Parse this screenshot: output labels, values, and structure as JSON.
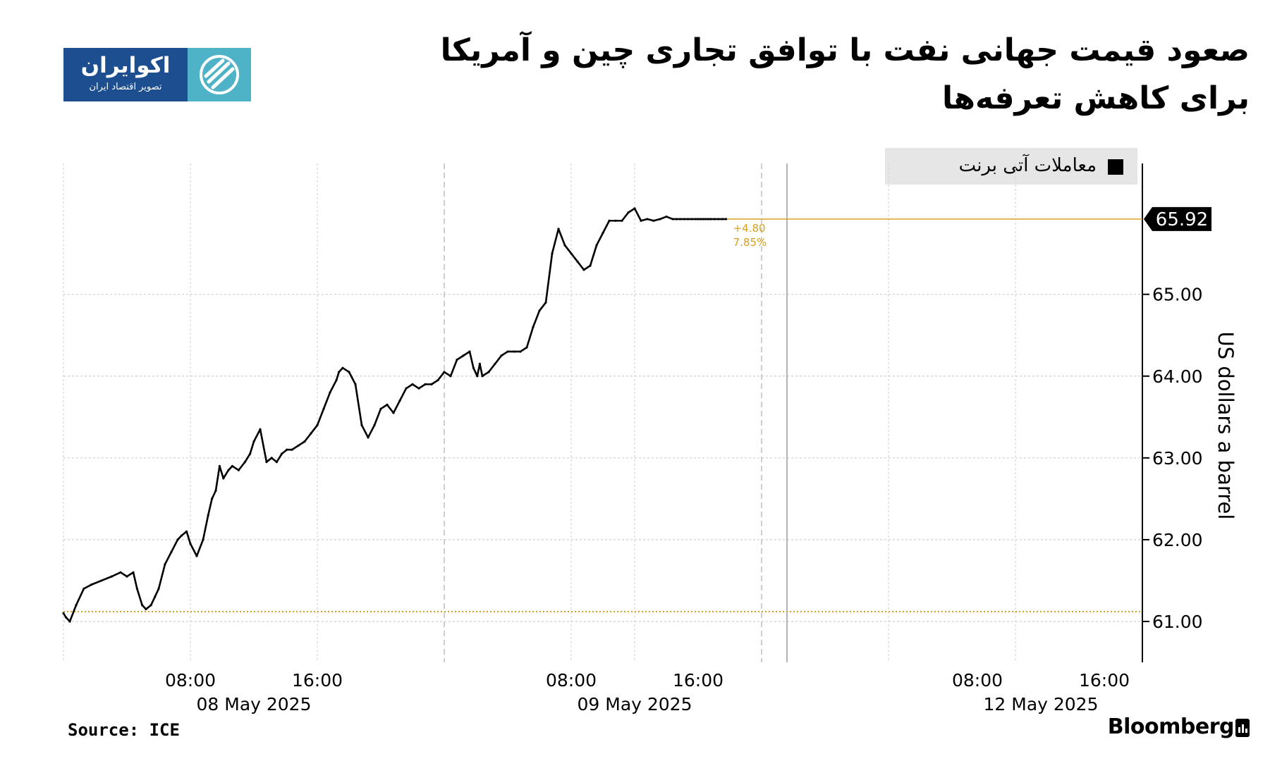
{
  "title": "صعود قیمت جهانی نفت با توافق تجاری چین و آمریکا برای کاهش تعرفه‌ها",
  "logo": {
    "name": "اکوایران",
    "tagline": "تصویر اقتصاد ایران",
    "accent": "#1d4e8f",
    "mark_color": "#4fb3c8"
  },
  "source": "Source: ICE",
  "brand": "Bloomberg",
  "chart_data": {
    "type": "line",
    "title": "صعود قیمت جهانی نفت با توافق تجاری چین و آمریکا برای کاهش تعرفه‌ها",
    "ylabel": "US dollars a barrel",
    "ylim": [
      60.5,
      66.6
    ],
    "yticks": [
      "61.00",
      "62.00",
      "63.00",
      "64.00",
      "65.00"
    ],
    "y_axis_side": "right",
    "grid": true,
    "legend": {
      "position": "top-right",
      "entries": [
        "معاملات آتی برنت"
      ]
    },
    "series": [
      {
        "name": "معاملات آتی برنت",
        "color": "#000000",
        "x": [
          0.0,
          0.2,
          0.5,
          1.0,
          1.6,
          2.2,
          3.0,
          3.8,
          4.5,
          5.0,
          5.5,
          5.8,
          6.2,
          6.5,
          6.9,
          7.2,
          7.5,
          8.0,
          8.5,
          9.0,
          9.3,
          9.7,
          10.0,
          10.5,
          11.0,
          11.4,
          11.7,
          12.0,
          12.3,
          12.6,
          13.0,
          13.3,
          13.8,
          14.3,
          14.7,
          15.0,
          15.5,
          16.0,
          16.4,
          16.8,
          17.2,
          17.6,
          18.0,
          18.5,
          19.0,
          19.5,
          20.0,
          20.5,
          21.0,
          21.5,
          21.7,
          22.0,
          22.5,
          23.0,
          23.5,
          24.0,
          24.5,
          25.0,
          25.5,
          26.0,
          26.5,
          27.0,
          27.5,
          28.0,
          28.5,
          29.0,
          29.5,
          30.0,
          30.5,
          31.0,
          31.5,
          32.0,
          32.3,
          32.6,
          32.8,
          33.0,
          33.5,
          34.0,
          34.5,
          35.0,
          35.5,
          36.0,
          36.5,
          37.0,
          37.5,
          38.0,
          38.5,
          39.0,
          39.5,
          40.0,
          40.5,
          41.0,
          41.5,
          42.0,
          42.5,
          43.0,
          43.5,
          44.0,
          44.5,
          45.0,
          45.5,
          46.0,
          46.5,
          47.0,
          47.5,
          48.0,
          48.3,
          48.6,
          48.9,
          49.2,
          49.5,
          49.8,
          50.0,
          50.2,
          50.4,
          50.6,
          50.8,
          51.0,
          51.3,
          51.6,
          51.9,
          52.2
        ],
        "y": [
          61.1,
          61.05,
          61.0,
          61.2,
          61.4,
          61.45,
          61.5,
          61.55,
          61.6,
          61.55,
          61.6,
          61.4,
          61.2,
          61.15,
          61.2,
          61.3,
          61.4,
          61.7,
          61.85,
          62.0,
          62.05,
          62.1,
          61.95,
          61.8,
          62.0,
          62.3,
          62.5,
          62.6,
          62.9,
          62.75,
          62.85,
          62.9,
          62.85,
          62.95,
          63.05,
          63.2,
          63.35,
          62.95,
          63.0,
          62.95,
          63.05,
          63.1,
          63.1,
          63.15,
          63.2,
          63.3,
          63.4,
          63.6,
          63.8,
          63.95,
          64.05,
          64.1,
          64.05,
          63.9,
          63.4,
          63.25,
          63.4,
          63.6,
          63.65,
          63.55,
          63.7,
          63.85,
          63.9,
          63.85,
          63.9,
          63.9,
          63.95,
          64.05,
          64.0,
          64.2,
          64.25,
          64.3,
          64.1,
          64.0,
          64.15,
          64.0,
          64.05,
          64.15,
          64.25,
          64.3,
          64.3,
          64.3,
          64.35,
          64.6,
          64.8,
          64.9,
          65.5,
          65.8,
          65.6,
          65.5,
          65.4,
          65.3,
          65.35,
          65.6,
          65.75,
          65.9,
          65.9,
          65.9,
          66.0,
          66.05,
          65.9,
          65.92,
          65.9,
          65.92,
          65.95,
          65.92,
          65.92,
          65.92,
          65.92,
          65.92,
          65.92,
          65.92,
          65.92,
          65.92,
          65.92,
          65.92,
          65.92,
          65.92,
          65.92,
          65.92,
          65.92,
          65.92
        ]
      }
    ],
    "x_ticks": [
      {
        "time": "08:00",
        "date": "08 May 2025"
      },
      {
        "time": "16:00",
        "date": ""
      },
      {
        "time": "08:00",
        "date": "09 May 2025"
      },
      {
        "time": "16:00",
        "date": ""
      },
      {
        "time": "08:00",
        "date": "12 May 2025"
      },
      {
        "time": "16:00",
        "date": ""
      }
    ],
    "reference_line": {
      "value": 61.12,
      "color": "#d8a020",
      "style": "dotted"
    },
    "last_value": {
      "label": "65.92",
      "value": 65.92,
      "color": "#d8a020"
    },
    "change_annotation": {
      "abs": "+4.80",
      "pct": "7.85%"
    }
  }
}
